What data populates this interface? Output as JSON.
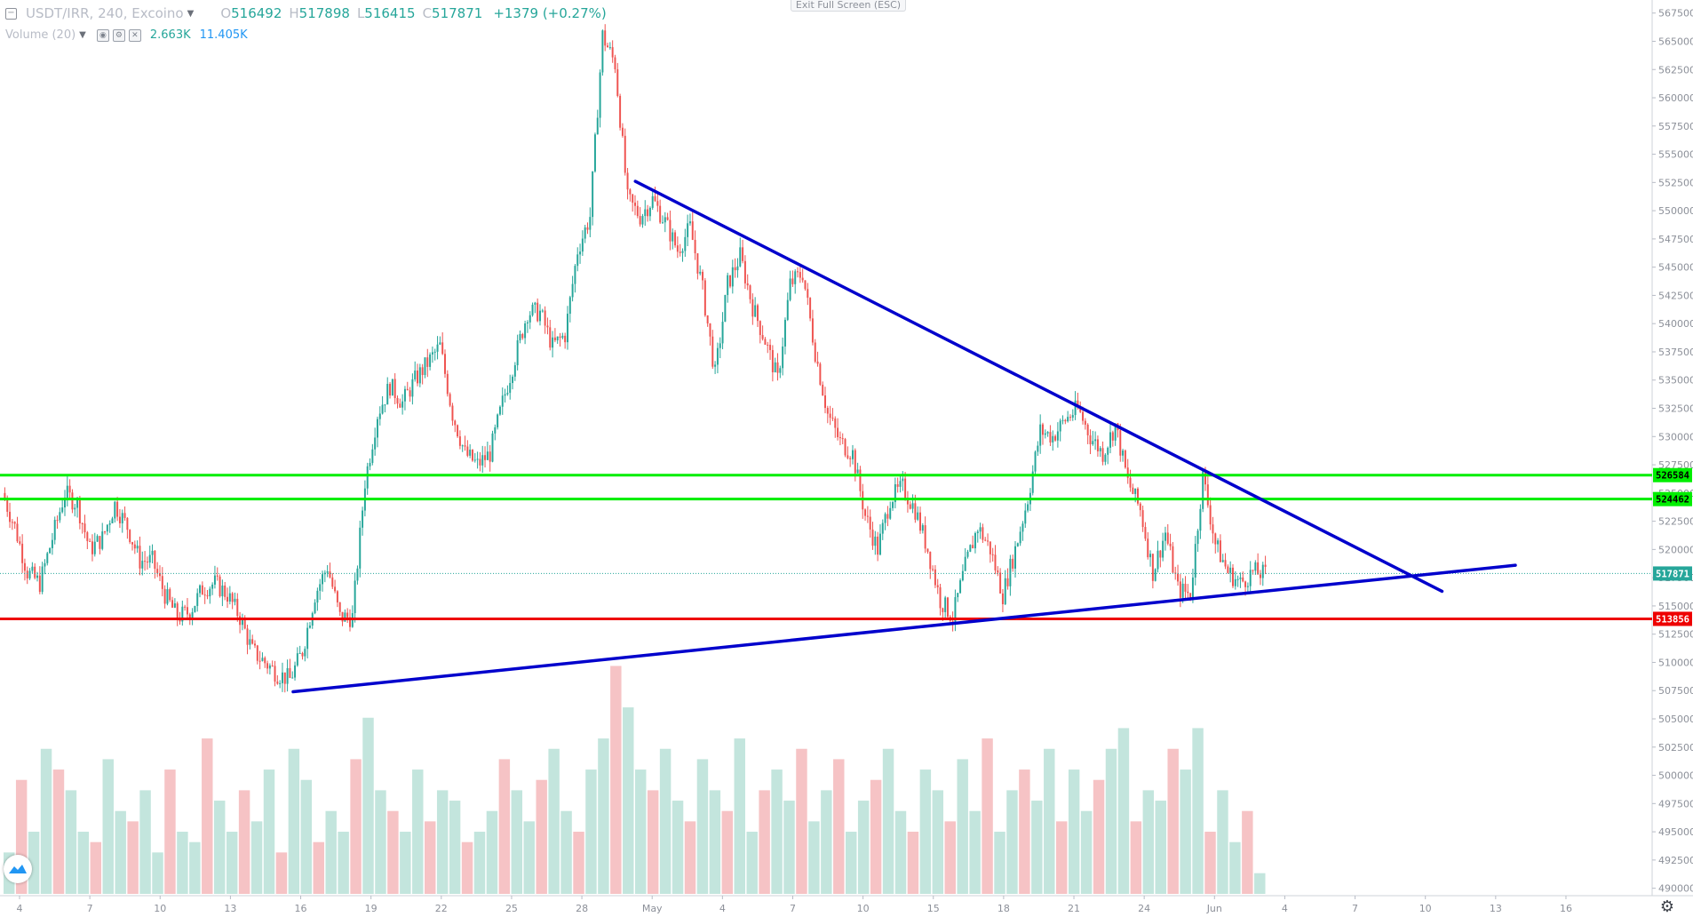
{
  "legend": {
    "symbol": "USDT/IRR, 240, Excoino",
    "open_key": "O",
    "open": "516492",
    "high_key": "H",
    "high": "517898",
    "low_key": "L",
    "low": "516415",
    "close_key": "C",
    "close": "517871",
    "change": "+1379 (+0.27%)"
  },
  "volume_legend": {
    "label": "Volume (20)",
    "value1": "2.663K",
    "value2": "11.405K"
  },
  "exit_fullscreen_label": "Exit Full Screen (ESC)",
  "colors": {
    "up": "#26a69a",
    "down": "#ef5350",
    "volume_up": "#c3e5dd",
    "volume_down": "#f6c3c5",
    "trendline": "#0000cc",
    "resistance": "#00ee00",
    "support": "#ee0000",
    "last_price_badge": "#26a69a"
  },
  "price_axis": {
    "ticks": [
      "567500",
      "565000",
      "562500",
      "560000",
      "557500",
      "555000",
      "552500",
      "550000",
      "547500",
      "545000",
      "542500",
      "540000",
      "537500",
      "535000",
      "532500",
      "530000",
      "527500",
      "525000",
      "522500",
      "520000",
      "517500",
      "515000",
      "512500",
      "510000",
      "507500",
      "505000",
      "502500",
      "500000",
      "497500",
      "495000",
      "492500",
      "490000"
    ]
  },
  "price_badges": [
    {
      "label": "526584",
      "value": 526584,
      "color": "#00ee00",
      "text_color": "#000000"
    },
    {
      "label": "524462",
      "value": 524462,
      "color": "#00ee00",
      "text_color": "#000000"
    },
    {
      "label": "517871",
      "value": 517871,
      "color": "#26a69a",
      "text_color": "#ffffff"
    },
    {
      "label": "513856",
      "value": 513856,
      "color": "#ee0000",
      "text_color": "#ffffff"
    }
  ],
  "time_axis": {
    "labels": [
      "4",
      "7",
      "10",
      "13",
      "16",
      "19",
      "22",
      "25",
      "28",
      "May",
      "4",
      "7",
      "10",
      "15",
      "18",
      "21",
      "24",
      "Jun",
      "4",
      "7",
      "10",
      "13",
      "16"
    ]
  },
  "chart_data": {
    "type": "candlestick",
    "symbol": "USDT/IRR",
    "interval": "240",
    "y_range": [
      489500,
      568500
    ],
    "horizontal_levels": [
      {
        "value": 526584,
        "color": "#00ee00"
      },
      {
        "value": 524462,
        "color": "#00ee00"
      },
      {
        "value": 513856,
        "color": "#ee0000"
      }
    ],
    "last_price": 517871,
    "trendlines": [
      {
        "from": {
          "bar": 0.28,
          "price": 552600
        },
        "to": {
          "bar": 0.94,
          "price": 516300
        }
      },
      {
        "from": {
          "bar": 0.0,
          "price": 507400
        },
        "to": {
          "bar": 1.0,
          "price": 518600
        }
      }
    ],
    "price_path": [
      525000,
      522000,
      518000,
      517000,
      521000,
      525000,
      524000,
      520000,
      521000,
      524000,
      522000,
      519000,
      519000,
      516000,
      514000,
      514500,
      516500,
      517000,
      516000,
      514000,
      511000,
      510000,
      509000,
      508500,
      511000,
      516000,
      518500,
      514000,
      514000,
      526000,
      532000,
      534500,
      533000,
      535000,
      536500,
      538000,
      532000,
      528500,
      527500,
      528500,
      533000,
      537000,
      541000,
      541000,
      538000,
      539000,
      546500,
      549500,
      565500,
      563000,
      551000,
      549500,
      551000,
      549000,
      546500,
      548500,
      543000,
      535500,
      543500,
      546000,
      541500,
      538500,
      535000,
      543500,
      544500,
      537500,
      532000,
      529500,
      528500,
      523000,
      520000,
      524500,
      525500,
      523500,
      520000,
      515500,
      514000,
      518500,
      522000,
      520000,
      516000,
      520000,
      524500,
      530500,
      530000,
      531500,
      532500,
      530000,
      528500,
      531000,
      526000,
      523500,
      518000,
      521500,
      516500,
      516000,
      526500,
      520500,
      518000,
      517000,
      518000,
      517800
    ],
    "volume": [
      2.0,
      5.5,
      3.0,
      7.0,
      6.0,
      5.0,
      3.0,
      2.5,
      6.5,
      4.0,
      3.5,
      5.0,
      2.0,
      6.0,
      3.0,
      2.5,
      7.5,
      4.5,
      3.0,
      5.0,
      3.5,
      6.0,
      2.0,
      7.0,
      5.5,
      2.5,
      4.0,
      3.0,
      6.5,
      8.5,
      5.0,
      4.0,
      3.0,
      6.0,
      3.5,
      5.0,
      4.5,
      2.5,
      3.0,
      4.0,
      6.5,
      5.0,
      3.5,
      5.5,
      7.0,
      4.0,
      3.0,
      6.0,
      7.5,
      11.0,
      9.0,
      6.0,
      5.0,
      7.0,
      4.5,
      3.5,
      6.5,
      5.0,
      4.0,
      7.5,
      3.0,
      5.0,
      6.0,
      4.5,
      7.0,
      3.5,
      5.0,
      6.5,
      3.0,
      4.5,
      5.5,
      7.0,
      4.0,
      3.0,
      6.0,
      5.0,
      3.5,
      6.5,
      4.0,
      7.5,
      3.0,
      5.0,
      6.0,
      4.5,
      7.0,
      3.5,
      6.0,
      4.0,
      5.5,
      7.0,
      8.0,
      3.5,
      5.0,
      4.5,
      7.0,
      6.0,
      8.0,
      3.0,
      5.0,
      2.5,
      4.0,
      1.0
    ],
    "volume_max": 11.405
  }
}
